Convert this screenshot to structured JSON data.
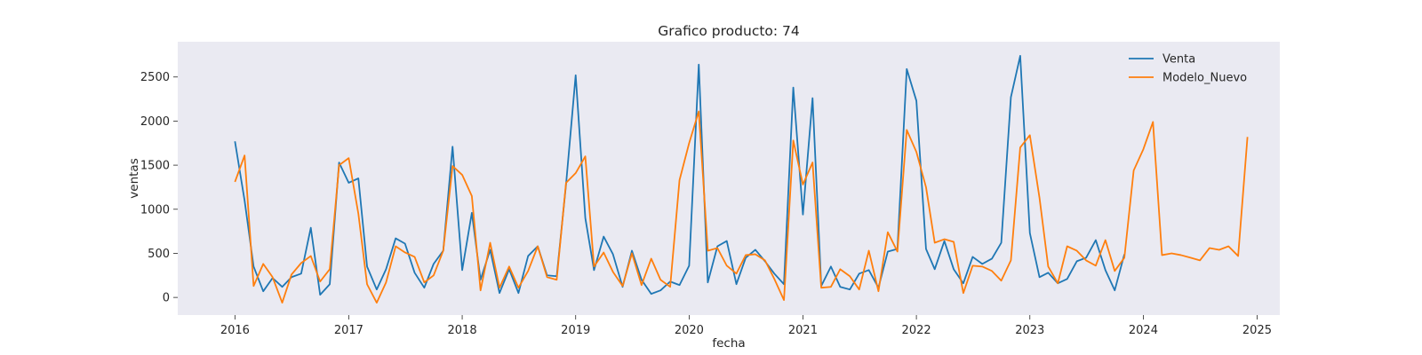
{
  "chart_data": {
    "type": "line",
    "title": "Grafico producto: 74",
    "xlabel": "fecha",
    "ylabel": "ventas",
    "xlim": [
      "2015-07-01",
      "2025-03-15"
    ],
    "ylim": [
      -200,
      2900
    ],
    "xticks": [
      {
        "value": "2016-01-01",
        "label": "2016"
      },
      {
        "value": "2017-01-01",
        "label": "2017"
      },
      {
        "value": "2018-01-01",
        "label": "2018"
      },
      {
        "value": "2019-01-01",
        "label": "2019"
      },
      {
        "value": "2020-01-01",
        "label": "2020"
      },
      {
        "value": "2021-01-01",
        "label": "2021"
      },
      {
        "value": "2022-01-01",
        "label": "2022"
      },
      {
        "value": "2023-01-01",
        "label": "2023"
      },
      {
        "value": "2024-01-01",
        "label": "2024"
      },
      {
        "value": "2025-01-01",
        "label": "2025"
      }
    ],
    "yticks": [
      {
        "value": 0,
        "label": "0"
      },
      {
        "value": 500,
        "label": "500"
      },
      {
        "value": 1000,
        "label": "1000"
      },
      {
        "value": 1500,
        "label": "1500"
      },
      {
        "value": 2000,
        "label": "2000"
      },
      {
        "value": 2500,
        "label": "2500"
      }
    ],
    "grid": false,
    "legend": "top-right",
    "series": [
      {
        "name": "Venta",
        "color": "#1f77b4",
        "start": "2016-01",
        "values": [
          1770,
          1100,
          350,
          70,
          220,
          120,
          230,
          270,
          790,
          30,
          150,
          1530,
          1300,
          1350,
          350,
          90,
          320,
          670,
          610,
          280,
          110,
          380,
          530,
          1710,
          310,
          960,
          200,
          540,
          50,
          320,
          50,
          470,
          580,
          250,
          240,
          1280,
          2520,
          900,
          310,
          690,
          490,
          120,
          530,
          200,
          40,
          80,
          180,
          140,
          360,
          2640,
          170,
          580,
          640,
          150,
          450,
          540,
          410,
          270,
          150,
          2380,
          940,
          2260,
          130,
          350,
          120,
          90,
          270,
          310,
          110,
          520,
          550,
          2590,
          2230,
          550,
          320,
          640,
          320,
          160,
          460,
          380,
          440,
          620,
          2270,
          2740,
          730,
          230,
          280,
          160,
          210,
          410,
          450,
          650,
          310,
          80,
          490
        ]
      },
      {
        "name": "Modelo_Nuevo",
        "color": "#ff7f0e",
        "start": "2016-01",
        "values": [
          1310,
          1610,
          130,
          380,
          230,
          -60,
          260,
          390,
          470,
          180,
          320,
          1500,
          1580,
          950,
          150,
          -60,
          170,
          580,
          510,
          460,
          170,
          250,
          530,
          1490,
          1390,
          1150,
          80,
          620,
          110,
          350,
          110,
          300,
          580,
          230,
          200,
          1300,
          1410,
          1600,
          350,
          510,
          290,
          130,
          500,
          140,
          440,
          200,
          120,
          1330,
          1750,
          2110,
          530,
          560,
          360,
          270,
          480,
          490,
          420,
          210,
          -30,
          1780,
          1280,
          1530,
          110,
          120,
          320,
          240,
          90,
          530,
          70,
          740,
          520,
          1900,
          1650,
          1250,
          620,
          660,
          630,
          50,
          360,
          350,
          300,
          190,
          420,
          1700,
          1840,
          1130,
          350,
          160,
          580,
          530,
          420,
          360,
          650,
          300,
          450,
          1440,
          1680,
          1990,
          480,
          500,
          480,
          450,
          420,
          560,
          540,
          580,
          470,
          1820
        ]
      }
    ]
  }
}
